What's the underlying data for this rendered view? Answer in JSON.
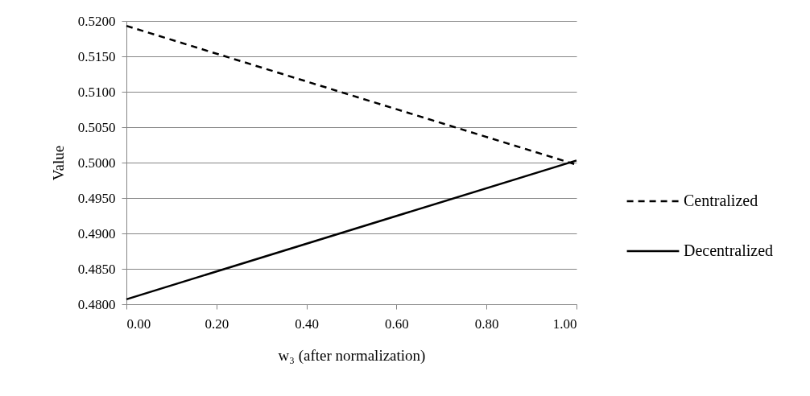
{
  "chart_data": {
    "type": "line",
    "xlabel": "w₃  (after normalization)",
    "ylabel": "Value",
    "x": [
      0,
      1
    ],
    "series": [
      {
        "name": "Centralized",
        "color": "#000000",
        "line_style": "dashed",
        "values": [
          0.5193,
          0.4997
        ]
      },
      {
        "name": "Decentralized",
        "color": "#000000",
        "line_style": "solid",
        "values": [
          0.4807,
          0.5003
        ]
      }
    ],
    "xlim": [
      0,
      1
    ],
    "xticks": [
      {
        "value": 0,
        "label": "0.00"
      },
      {
        "value": 0.2,
        "label": "0.20"
      },
      {
        "value": 0.4,
        "label": "0.40"
      },
      {
        "value": 0.6,
        "label": "0.60"
      },
      {
        "value": 0.8,
        "label": "0.80"
      },
      {
        "value": 1,
        "label": "1.00"
      }
    ],
    "ylim": [
      0.48,
      0.52
    ],
    "yticks": [
      {
        "value": 0.48,
        "label": "0.4800"
      },
      {
        "value": 0.485,
        "label": "0.4850"
      },
      {
        "value": 0.49,
        "label": "0.4900"
      },
      {
        "value": 0.495,
        "label": "0.4950"
      },
      {
        "value": 0.5,
        "label": "0.5000"
      },
      {
        "value": 0.505,
        "label": "0.5050"
      },
      {
        "value": 0.51,
        "label": "0.5100"
      },
      {
        "value": 0.515,
        "label": "0.5150"
      },
      {
        "value": 0.52,
        "label": "0.5200"
      }
    ],
    "grid": "y",
    "legend": "right",
    "marker": "none"
  }
}
